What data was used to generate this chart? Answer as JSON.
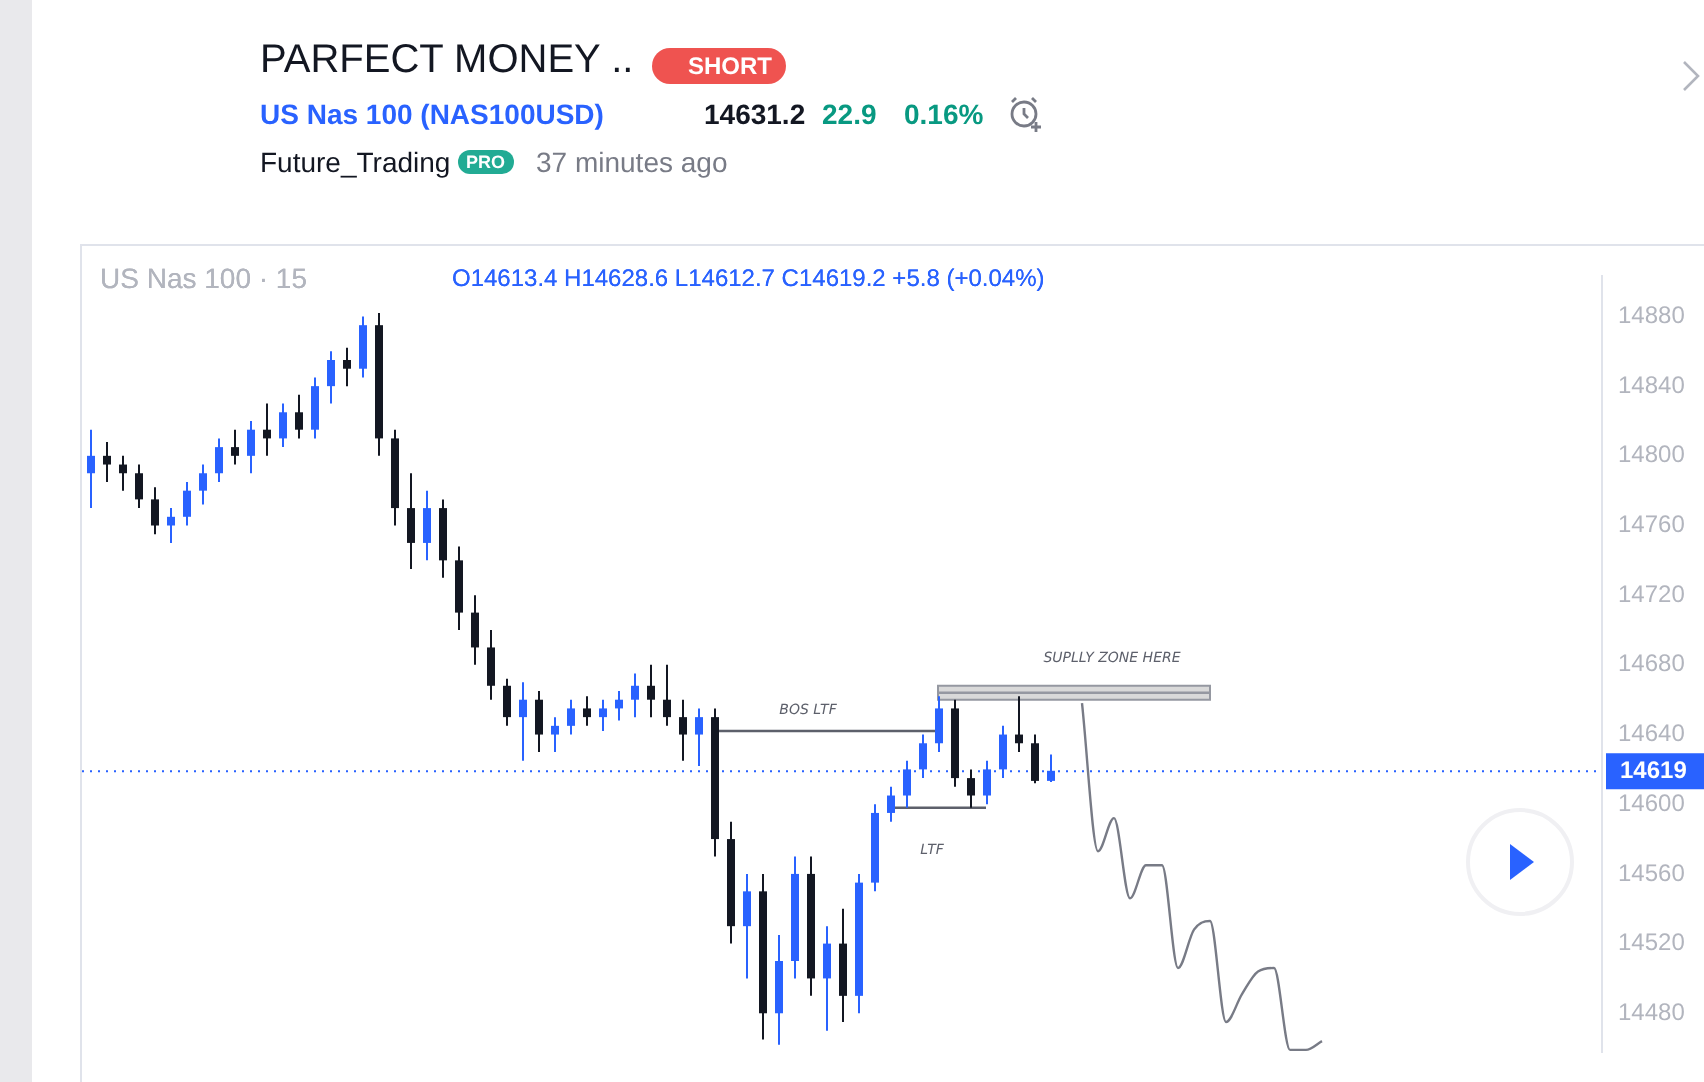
{
  "chart_data": {
    "type": "candlestick",
    "title": "PARFECT MONEY ..",
    "subtitle": "US Nas 100 (NAS100USD)",
    "categories": [
      null,
      null,
      null,
      null,
      null,
      null,
      null,
      null,
      null,
      null,
      null,
      null,
      null,
      null,
      null,
      null,
      null,
      null,
      null,
      null,
      null,
      null,
      null,
      null,
      null,
      null,
      null,
      null,
      null,
      null,
      null,
      null,
      null,
      null,
      null,
      null,
      null,
      null,
      null,
      null,
      null,
      null,
      null,
      null,
      null,
      null,
      null,
      null,
      null,
      null,
      null,
      null,
      null,
      null,
      null,
      null,
      null,
      null,
      null,
      null,
      null,
      null,
      null,
      null,
      null,
      null,
      null,
      null,
      null,
      null,
      null,
      null,
      null,
      null,
      null,
      null,
      null,
      null,
      null,
      null,
      null,
      null,
      null,
      null,
      null,
      null,
      null,
      null,
      null,
      null,
      null,
      null,
      null,
      null,
      null
    ],
    "ohlc": [
      [
        14790,
        14815,
        14770,
        14800
      ],
      [
        14800,
        14808,
        14785,
        14795
      ],
      [
        14795,
        14800,
        14780,
        14790
      ],
      [
        14790,
        14795,
        14770,
        14775
      ],
      [
        14775,
        14782,
        14755,
        14760
      ],
      [
        14760,
        14770,
        14750,
        14765
      ],
      [
        14765,
        14785,
        14760,
        14780
      ],
      [
        14780,
        14795,
        14772,
        14790
      ],
      [
        14790,
        14810,
        14785,
        14805
      ],
      [
        14805,
        14815,
        14795,
        14800
      ],
      [
        14800,
        14820,
        14790,
        14815
      ],
      [
        14815,
        14830,
        14800,
        14810
      ],
      [
        14810,
        14830,
        14805,
        14825
      ],
      [
        14825,
        14835,
        14810,
        14815
      ],
      [
        14815,
        14845,
        14810,
        14840
      ],
      [
        14840,
        14860,
        14830,
        14855
      ],
      [
        14855,
        14862,
        14840,
        14850
      ],
      [
        14850,
        14880,
        14845,
        14875
      ],
      [
        14875,
        14882,
        14800,
        14810
      ],
      [
        14810,
        14815,
        14760,
        14770
      ],
      [
        14770,
        14790,
        14735,
        14750
      ],
      [
        14750,
        14780,
        14740,
        14770
      ],
      [
        14770,
        14775,
        14730,
        14740
      ],
      [
        14740,
        14748,
        14700,
        14710
      ],
      [
        14710,
        14720,
        14680,
        14690
      ],
      [
        14690,
        14700,
        14660,
        14668
      ],
      [
        14668,
        14672,
        14645,
        14650
      ],
      [
        14650,
        14670,
        14625,
        14660
      ],
      [
        14660,
        14665,
        14630,
        14640
      ],
      [
        14640,
        14650,
        14630,
        14645
      ],
      [
        14645,
        14660,
        14640,
        14655
      ],
      [
        14655,
        14662,
        14645,
        14650
      ],
      [
        14650,
        14660,
        14642,
        14655
      ],
      [
        14655,
        14665,
        14648,
        14660
      ],
      [
        14660,
        14675,
        14650,
        14668
      ],
      [
        14668,
        14680,
        14650,
        14660
      ],
      [
        14660,
        14680,
        14645,
        14650
      ],
      [
        14650,
        14660,
        14625,
        14640
      ],
      [
        14640,
        14655,
        14622,
        14650
      ],
      [
        14650,
        14655,
        14570,
        14580
      ],
      [
        14580,
        14590,
        14520,
        14530
      ],
      [
        14530,
        14560,
        14500,
        14550
      ],
      [
        14550,
        14560,
        14465,
        14480
      ],
      [
        14480,
        14525,
        14462,
        14510
      ],
      [
        14510,
        14570,
        14500,
        14560
      ],
      [
        14560,
        14570,
        14490,
        14500
      ],
      [
        14500,
        14530,
        14470,
        14520
      ],
      [
        14520,
        14540,
        14475,
        14490
      ],
      [
        14490,
        14560,
        14480,
        14555
      ],
      [
        14555,
        14600,
        14550,
        14595
      ],
      [
        14595,
        14610,
        14590,
        14605
      ],
      [
        14605,
        14625,
        14598,
        14620
      ],
      [
        14620,
        14640,
        14615,
        14635
      ],
      [
        14635,
        14662,
        14630,
        14655
      ],
      [
        14655,
        14660,
        14610,
        14615
      ],
      [
        14615,
        14620,
        14598,
        14605
      ],
      [
        14605,
        14625,
        14600,
        14620
      ],
      [
        14620,
        14645,
        14615,
        14640
      ],
      [
        14640,
        14662,
        14630,
        14635
      ],
      [
        14635,
        14640,
        14612,
        14613.4
      ],
      [
        14613.4,
        14628.6,
        14612.7,
        14619.2
      ],
      null,
      null,
      null,
      null,
      null,
      null,
      null,
      null,
      null,
      null,
      null,
      null,
      null,
      null,
      null,
      null,
      null,
      null,
      null,
      null,
      null,
      null,
      null,
      null,
      null,
      null,
      null,
      null,
      null,
      null,
      null,
      null,
      null,
      null
    ],
    "colors": [
      "#2962ff",
      "#131722",
      "#131722",
      "#131722",
      "#131722",
      "#2962ff",
      "#2962ff",
      "#2962ff",
      "#2962ff",
      "#131722",
      "#2962ff",
      "#131722",
      "#2962ff",
      "#131722",
      "#2962ff",
      "#2962ff",
      "#131722",
      "#2962ff",
      "#131722",
      "#131722",
      "#131722",
      "#2962ff",
      "#131722",
      "#131722",
      "#131722",
      "#131722",
      "#131722",
      "#2962ff",
      "#131722",
      "#2962ff",
      "#2962ff",
      "#131722",
      "#2962ff",
      "#2962ff",
      "#2962ff",
      "#131722",
      "#131722",
      "#131722",
      "#2962ff",
      "#131722",
      "#131722",
      "#2962ff",
      "#131722",
      "#2962ff",
      "#2962ff",
      "#131722",
      "#2962ff",
      "#131722",
      "#2962ff",
      "#2962ff",
      "#2962ff",
      "#2962ff",
      "#2962ff",
      "#2962ff",
      "#131722",
      "#131722",
      "#2962ff",
      "#2962ff",
      "#131722",
      "#131722",
      "#2962ff",
      null,
      null,
      null,
      null,
      null,
      null,
      null,
      null,
      null,
      null,
      null,
      null,
      null,
      null,
      null,
      null,
      null,
      null,
      null,
      null,
      null,
      null,
      null,
      null,
      null,
      null,
      null,
      null,
      null,
      null,
      null,
      null,
      null,
      null
    ],
    "series": [
      {
        "type": "line",
        "color": "#787b86",
        "values": [
          null,
          null,
          null,
          null,
          null,
          null,
          null,
          null,
          null,
          null,
          null,
          null,
          null,
          null,
          null,
          null,
          null,
          null,
          null,
          null,
          null,
          null,
          null,
          null,
          null,
          null,
          null,
          null,
          null,
          null,
          null,
          null,
          null,
          null,
          null,
          null,
          null,
          null,
          null,
          null,
          null,
          null,
          null,
          null,
          null,
          null,
          null,
          null,
          null,
          null,
          null,
          null,
          null,
          null,
          null,
          null,
          null,
          null,
          null,
          null,
          null,
          null,
          14658,
          14573,
          14592,
          14546,
          14565,
          14565,
          14506,
          14528,
          14533,
          14475,
          14491,
          14504,
          14506,
          14459,
          14459,
          14464,
          null,
          null,
          null,
          null,
          null,
          null,
          null,
          null,
          null,
          null,
          null,
          null,
          null,
          null,
          null,
          null,
          null
        ]
      },
      {
        "type": "line",
        "color": "#5d606b",
        "values": [
          null,
          null,
          null,
          null,
          null,
          null,
          null,
          null,
          null,
          null,
          null,
          null,
          null,
          null,
          null,
          null,
          null,
          null,
          null,
          null,
          null,
          null,
          null,
          null,
          null,
          null,
          null,
          null,
          null,
          null,
          null,
          null,
          null,
          null,
          null,
          null,
          null,
          null,
          null,
          14642,
          14642,
          14642,
          14642,
          14642,
          14642,
          14642,
          14642,
          14642,
          14642,
          14642,
          14642,
          14642,
          14642,
          14642,
          null,
          null,
          null,
          null,
          null,
          null,
          null,
          null,
          null,
          null,
          null,
          null,
          null,
          null,
          null,
          null,
          null,
          null,
          null,
          null,
          null,
          null,
          null,
          null,
          null,
          null,
          null,
          null,
          null,
          null,
          null,
          null,
          null,
          null,
          null,
          null,
          null,
          null,
          null,
          null,
          null
        ]
      },
      {
        "type": "line",
        "color": "#5d606b",
        "values": [
          null,
          null,
          null,
          null,
          null,
          null,
          null,
          null,
          null,
          null,
          null,
          null,
          null,
          null,
          null,
          null,
          null,
          null,
          null,
          null,
          null,
          null,
          null,
          null,
          null,
          null,
          null,
          null,
          null,
          null,
          null,
          null,
          null,
          null,
          null,
          null,
          null,
          null,
          null,
          null,
          null,
          null,
          null,
          null,
          null,
          null,
          null,
          null,
          null,
          null,
          14598,
          14598,
          14598,
          14598,
          14598,
          14598,
          14598,
          null,
          null,
          null,
          null,
          null,
          null,
          null,
          null,
          null,
          null,
          null,
          null,
          null,
          null,
          null,
          null,
          null,
          null,
          null,
          null,
          null,
          null,
          null,
          null,
          null,
          null,
          null,
          null,
          null,
          null,
          null,
          null,
          null,
          null,
          null,
          null,
          null,
          null
        ]
      },
      {
        "type": "line",
        "color": "#9598a1",
        "values": [
          null,
          null,
          null,
          null,
          null,
          null,
          null,
          null,
          null,
          null,
          null,
          null,
          null,
          null,
          null,
          null,
          null,
          null,
          null,
          null,
          null,
          null,
          null,
          null,
          null,
          null,
          null,
          null,
          null,
          null,
          null,
          null,
          null,
          null,
          null,
          null,
          null,
          null,
          null,
          null,
          null,
          null,
          null,
          null,
          null,
          null,
          null,
          null,
          null,
          null,
          null,
          null,
          null,
          14664,
          14664,
          14664,
          14664,
          14664,
          14664,
          14664,
          14664,
          14664,
          14664,
          14664,
          14664,
          14664,
          14664,
          14664,
          14664,
          14664,
          14664,
          null,
          null,
          null,
          null,
          null,
          null,
          null,
          null,
          null,
          null,
          null,
          null,
          null,
          null,
          null,
          null,
          null,
          null,
          null,
          null,
          null,
          null,
          null,
          null
        ],
        "lower": [
          null,
          null,
          null,
          null,
          null,
          null,
          null,
          null,
          null,
          null,
          null,
          null,
          null,
          null,
          null,
          null,
          null,
          null,
          null,
          null,
          null,
          null,
          null,
          null,
          null,
          null,
          null,
          null,
          null,
          null,
          null,
          null,
          null,
          null,
          null,
          null,
          null,
          null,
          null,
          null,
          null,
          null,
          null,
          null,
          null,
          null,
          null,
          null,
          null,
          null,
          null,
          null,
          null,
          14660,
          14660,
          14660,
          14660,
          14660,
          14660,
          14660,
          14660,
          14660,
          14660,
          14660,
          14660,
          14660,
          14660,
          14660,
          14660,
          14660,
          14660,
          null,
          null,
          null,
          null,
          null,
          null,
          null,
          null,
          null,
          null,
          null,
          null,
          null,
          null,
          null,
          null,
          null,
          null,
          null,
          null,
          null,
          null,
          null,
          null
        ],
        "upper": [
          null,
          null,
          null,
          null,
          null,
          null,
          null,
          null,
          null,
          null,
          null,
          null,
          null,
          null,
          null,
          null,
          null,
          null,
          null,
          null,
          null,
          null,
          null,
          null,
          null,
          null,
          null,
          null,
          null,
          null,
          null,
          null,
          null,
          null,
          null,
          null,
          null,
          null,
          null,
          null,
          null,
          null,
          null,
          null,
          null,
          null,
          null,
          null,
          null,
          null,
          null,
          null,
          null,
          14668,
          14668,
          14668,
          14668,
          14668,
          14668,
          14668,
          14668,
          14668,
          14668,
          14668,
          14668,
          14668,
          14668,
          14668,
          14668,
          14668,
          14668,
          null,
          null,
          null,
          null,
          null,
          null,
          null,
          null,
          null,
          null,
          null,
          null,
          null,
          null,
          null,
          null,
          null,
          null,
          null,
          null,
          null,
          null,
          null,
          null
        ]
      }
    ],
    "ylim": [
      14458,
      14903
    ],
    "yticks": [
      14480,
      14520,
      14560,
      14600,
      14640,
      14680,
      14720,
      14760,
      14800,
      14840,
      14880
    ],
    "tick_labels": "y",
    "ref_lines": [
      {
        "axis": "y",
        "value": 14619,
        "label": "14619",
        "color": "#2962ff",
        "line_style": "dotted"
      }
    ],
    "annotations": [
      "SHORT",
      "14631.2",
      "22.9",
      "0.16%",
      "Future_Trading",
      "PRO",
      "37 minutes ago",
      "US Nas 100 · 15",
      "O14613.4 H14628.6 L14612.7 C14619.2 +5.8 (+0.04%)",
      "BOS LTF",
      "LTF",
      "SUPLLY ZONE HERE"
    ]
  }
}
